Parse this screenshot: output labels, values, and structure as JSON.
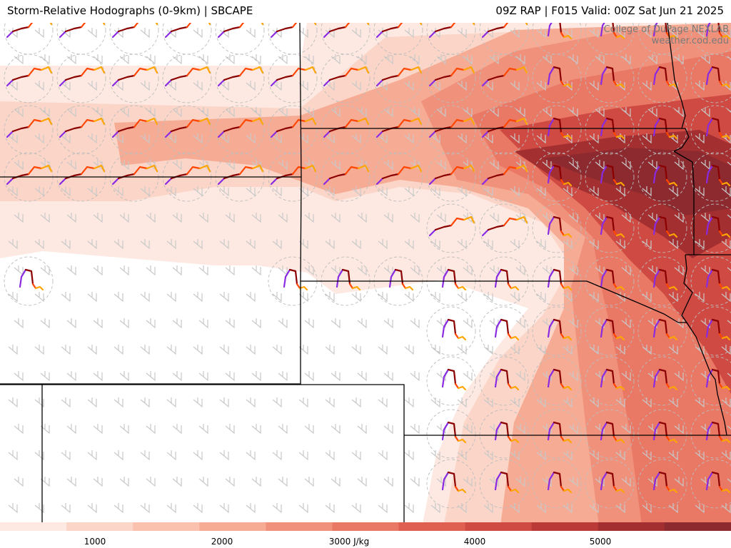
{
  "header": {
    "left_title": "Storm-Relative Hodographs (0-9km) | SBCAPE",
    "right_title": "09Z RAP | F015 Valid: 00Z Sat Jun 21 2025"
  },
  "credits": {
    "line1": "College of DuPage NEXLAB",
    "line2": "weather.cod.edu"
  },
  "colorbar": {
    "colors": [
      "#fde9e2",
      "#fbd6c8",
      "#f9c1ae",
      "#f6ab94",
      "#f0917b",
      "#e97865",
      "#df5f51",
      "#cf4a42",
      "#ba3a37",
      "#a32f31",
      "#8c2a2f"
    ],
    "ticks": [
      {
        "label": "1000"
      },
      {
        "label": "2000"
      },
      {
        "label": "3000 J/kg"
      },
      {
        "label": "4000"
      },
      {
        "label": "5000"
      }
    ]
  },
  "hodograph_colors": {
    "layer_0_1km": "#8a2be2",
    "layer_1_3km": "#8b0000",
    "layer_3_6km": "#ff4500",
    "layer_6_9km": "#ffa500"
  }
}
